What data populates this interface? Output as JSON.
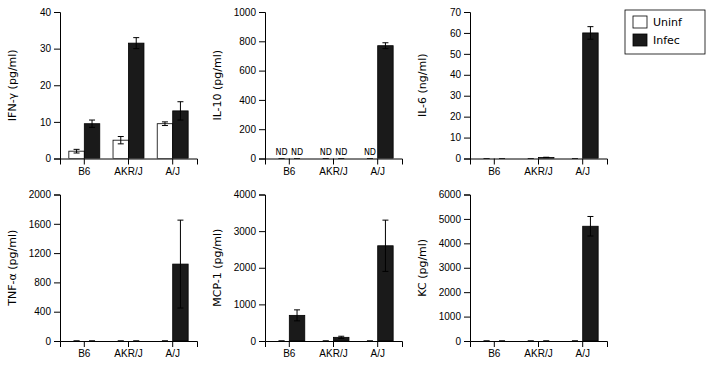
{
  "chart_data": [
    {
      "type": "bar",
      "ylabel": "IFN-γ (pg/ml)",
      "categories": [
        "B6",
        "AKR/J",
        "A/J"
      ],
      "series": [
        {
          "name": "Uninf",
          "color": "#ffffff",
          "values": [
            2.0,
            5.0,
            9.5
          ],
          "errors": [
            0.5,
            1.0,
            0.5
          ]
        },
        {
          "name": "Infec",
          "color": "#1a1a1a",
          "values": [
            9.5,
            31.5,
            13.0
          ],
          "errors": [
            1.0,
            1.5,
            2.5
          ]
        }
      ],
      "ylim": [
        0,
        40
      ],
      "yticks": [
        0,
        10,
        20,
        30,
        40
      ],
      "legend": "upper right"
    },
    {
      "type": "bar",
      "ylabel": "IL-10 (pg/ml)",
      "categories": [
        "B6",
        "AKR/J",
        "A/J"
      ],
      "series": [
        {
          "name": "Uninf",
          "color": "#ffffff",
          "values": [
            0,
            0,
            0
          ],
          "errors": [
            0,
            0,
            0
          ]
        },
        {
          "name": "Infec",
          "color": "#1a1a1a",
          "values": [
            0,
            0,
            770
          ],
          "errors": [
            0,
            0,
            20
          ]
        }
      ],
      "ylim": [
        0,
        1000
      ],
      "yticks": [
        0,
        200,
        400,
        600,
        800,
        1000
      ],
      "annotations": [
        {
          "text": "ND",
          "category": "B6",
          "series": "Uninf"
        },
        {
          "text": "ND",
          "category": "B6",
          "series": "Infec"
        },
        {
          "text": "ND",
          "category": "AKR/J",
          "series": "Uninf"
        },
        {
          "text": "ND",
          "category": "AKR/J",
          "series": "Infec"
        },
        {
          "text": "ND",
          "category": "A/J",
          "series": "Uninf"
        }
      ]
    },
    {
      "type": "bar",
      "ylabel": "IL-6 (ng/ml)",
      "categories": [
        "B6",
        "AKR/J",
        "A/J"
      ],
      "series": [
        {
          "name": "Uninf",
          "color": "#ffffff",
          "values": [
            0,
            0,
            0
          ],
          "errors": [
            0,
            0,
            0
          ]
        },
        {
          "name": "Infec",
          "color": "#1a1a1a",
          "values": [
            0,
            0.5,
            60.0
          ],
          "errors": [
            0,
            0.1,
            3.0
          ]
        }
      ],
      "ylim": [
        0,
        70
      ],
      "yticks": [
        0,
        10,
        20,
        30,
        40,
        50,
        60,
        70
      ]
    },
    {
      "type": "bar",
      "ylabel": "TNF-α (pg/ml)",
      "categories": [
        "B6",
        "AKR/J",
        "A/J"
      ],
      "series": [
        {
          "name": "Uninf",
          "color": "#ffffff",
          "values": [
            0,
            0,
            0
          ],
          "errors": [
            0,
            0,
            0
          ]
        },
        {
          "name": "Infec",
          "color": "#1a1a1a",
          "values": [
            0,
            0,
            1050
          ],
          "errors": [
            0,
            0,
            600
          ]
        }
      ],
      "ylim": [
        0,
        2000
      ],
      "yticks": [
        0,
        400,
        800,
        1200,
        1600,
        2000
      ]
    },
    {
      "type": "bar",
      "ylabel": "MCP-1 (pg/ml)",
      "categories": [
        "B6",
        "AKR/J",
        "A/J"
      ],
      "series": [
        {
          "name": "Uninf",
          "color": "#ffffff",
          "values": [
            0,
            0,
            0
          ],
          "errors": [
            0,
            0,
            0
          ]
        },
        {
          "name": "Infec",
          "color": "#1a1a1a",
          "values": [
            700,
            100,
            2600
          ],
          "errors": [
            150,
            30,
            700
          ]
        }
      ],
      "ylim": [
        0,
        4000
      ],
      "yticks": [
        0,
        1000,
        2000,
        3000,
        4000
      ]
    },
    {
      "type": "bar",
      "ylabel": "KC (pg/ml)",
      "categories": [
        "B6",
        "AKR/J",
        "A/J"
      ],
      "series": [
        {
          "name": "Uninf",
          "color": "#ffffff",
          "values": [
            0,
            0,
            0
          ],
          "errors": [
            0,
            0,
            0
          ]
        },
        {
          "name": "Infec",
          "color": "#1a1a1a",
          "values": [
            0,
            0,
            4700
          ],
          "errors": [
            0,
            0,
            400
          ]
        }
      ],
      "ylim": [
        0,
        6000
      ],
      "yticks": [
        0,
        1000,
        2000,
        3000,
        4000,
        5000,
        6000
      ]
    }
  ]
}
